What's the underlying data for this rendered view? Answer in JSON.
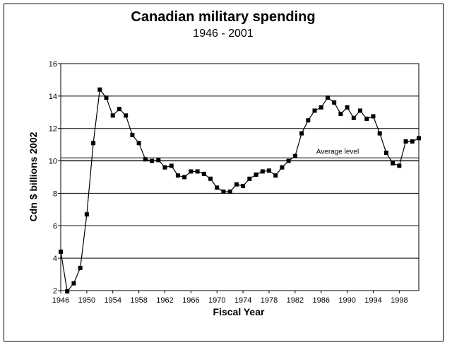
{
  "chart_data": {
    "type": "line",
    "title": "Canadian military spending",
    "subtitle": "1946 - 2001",
    "xlabel": "Fiscal Year",
    "ylabel": "Cdn $ billions 2002",
    "xlim": [
      1946,
      2001
    ],
    "ylim": [
      2,
      16
    ],
    "grid": "horizontal",
    "x_ticks": [
      "1946",
      "1950",
      "1954",
      "1958",
      "1962",
      "1966",
      "1970",
      "1974",
      "1978",
      "1982",
      "1986",
      "1990",
      "1994",
      "1998"
    ],
    "y_ticks": [
      "2",
      "4",
      "6",
      "8",
      "10",
      "12",
      "14",
      "16"
    ],
    "annotation": {
      "text": "Average level",
      "value": 10.1
    },
    "series": [
      {
        "x": [
          1946,
          1947,
          1948,
          1949,
          1950,
          1951,
          1952,
          1953,
          1954,
          1955,
          1956,
          1957,
          1958,
          1959,
          1960,
          1961,
          1962,
          1963,
          1964,
          1965,
          1966,
          1967,
          1968,
          1969,
          1970,
          1971,
          1972,
          1973,
          1974,
          1975,
          1976,
          1977,
          1978,
          1979,
          1980,
          1981,
          1982,
          1983,
          1984,
          1985,
          1986,
          1987,
          1988,
          1989,
          1990,
          1991,
          1992,
          1993,
          1994,
          1995,
          1996,
          1997,
          1998,
          1999,
          2000,
          2001
        ],
        "y": [
          4.4,
          1.95,
          2.45,
          3.4,
          6.7,
          11.1,
          14.4,
          13.9,
          12.8,
          13.2,
          12.8,
          11.6,
          11.1,
          10.1,
          10.0,
          10.05,
          9.6,
          9.7,
          9.1,
          9.0,
          9.35,
          9.35,
          9.2,
          8.9,
          8.35,
          8.1,
          8.1,
          8.55,
          8.45,
          8.9,
          9.15,
          9.35,
          9.4,
          9.1,
          9.6,
          10.0,
          10.3,
          11.7,
          12.5,
          13.1,
          13.3,
          13.9,
          13.6,
          12.9,
          13.3,
          12.65,
          13.1,
          12.6,
          12.75,
          11.7,
          10.5,
          9.85,
          9.7,
          11.2,
          11.2,
          11.4
        ]
      }
    ]
  }
}
